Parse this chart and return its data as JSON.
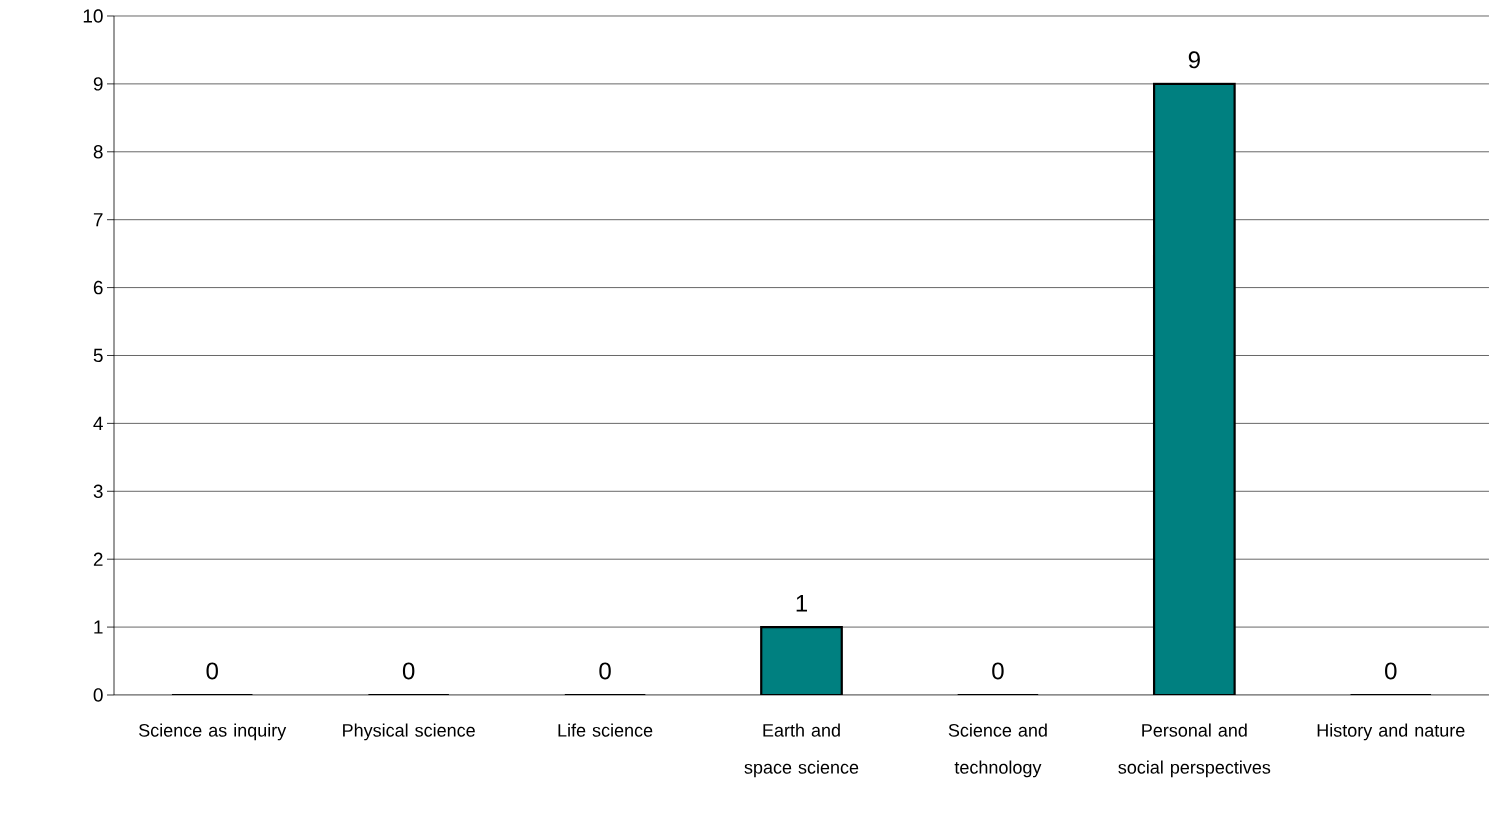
{
  "chart_data": {
    "type": "bar",
    "categories": [
      "Science as inquiry",
      "Physical science",
      "Life science",
      "Earth and space science",
      "Science and technology",
      "Personal and social perspectives",
      "History and nature"
    ],
    "values": [
      0,
      0,
      0,
      1,
      0,
      9,
      0
    ],
    "color": "#008080",
    "ylim": [
      0,
      10
    ],
    "yticks": [
      0,
      1,
      2,
      3,
      4,
      5,
      6,
      7,
      8,
      9,
      10
    ],
    "grid": "y",
    "data_labels": true
  }
}
